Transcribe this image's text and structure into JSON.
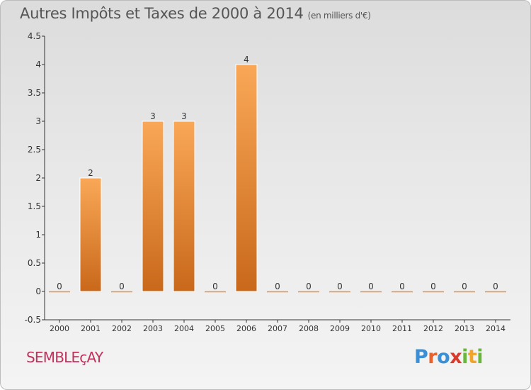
{
  "header": {
    "title": "Autres Impôts et Taxes de 2000 à 2014",
    "subtitle": "(en milliers d'€)"
  },
  "footer": {
    "commune": "SEMBLEçAY",
    "logo_text": "Proxiti"
  },
  "colors": {
    "bar_top": "#f9a857",
    "bar_bottom": "#c9681a",
    "zero_line": "#e8904a",
    "commune": "#c0325c"
  },
  "chart_data": {
    "type": "bar",
    "title": "Autres Impôts et Taxes de 2000 à 2014",
    "subtitle": "(en milliers d'€)",
    "categories": [
      "2000",
      "2001",
      "2002",
      "2003",
      "2004",
      "2005",
      "2006",
      "2007",
      "2008",
      "2009",
      "2010",
      "2011",
      "2012",
      "2013",
      "2014"
    ],
    "values": [
      0,
      2,
      0,
      3,
      3,
      0,
      4,
      0,
      0,
      0,
      0,
      0,
      0,
      0,
      0
    ],
    "data_labels": [
      "0",
      "2",
      "0",
      "3",
      "3",
      "0",
      "4",
      "0",
      "0",
      "0",
      "0",
      "0",
      "0",
      "0",
      "0"
    ],
    "ylim": [
      -0.5,
      4.5
    ],
    "yticks": [
      -0.5,
      0,
      0.5,
      1,
      1.5,
      2,
      2.5,
      3,
      3.5,
      4,
      4.5
    ],
    "ytick_labels": [
      "-0.5",
      "0",
      "0.5",
      "1",
      "1.5",
      "2",
      "2.5",
      "3",
      "3.5",
      "4",
      "4.5"
    ],
    "grid": false,
    "legend": "none"
  }
}
